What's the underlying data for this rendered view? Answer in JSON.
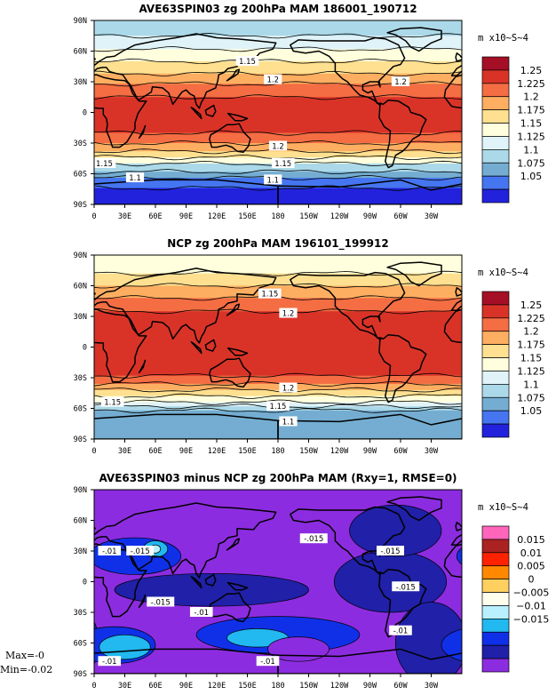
{
  "chart_data": [
    {
      "type": "heatmap",
      "title": "AVE63SPIN03 zg 200hPa MAM 186001_190712",
      "units": "m x10~S~4",
      "x_ticks": [
        "0",
        "30E",
        "60E",
        "90E",
        "120E",
        "150E",
        "180",
        "150W",
        "120W",
        "90W",
        "60W",
        "30W"
      ],
      "y_ticks": [
        "90N",
        "60N",
        "30N",
        "0",
        "30S",
        "60S",
        "90S"
      ],
      "colorbar_levels": [
        "1.25",
        "1.225",
        "1.2",
        "1.175",
        "1.15",
        "1.125",
        "1.1",
        "1.075",
        "1.05"
      ],
      "colorbar_colors": [
        "#a50f26",
        "#d93328",
        "#f46d43",
        "#fdae61",
        "#fee090",
        "#ffffdd",
        "#e0f3f8",
        "#abd9e9",
        "#74add1",
        "#4575f0",
        "#2222dd"
      ],
      "bands": [
        {
          "lat_top": 90,
          "lat_bottom": 75,
          "color": "#abd9e9"
        },
        {
          "lat_top": 75,
          "lat_bottom": 62,
          "color": "#e0f3f8"
        },
        {
          "lat_top": 62,
          "lat_bottom": 50,
          "color": "#ffffdd"
        },
        {
          "lat_top": 50,
          "lat_bottom": 38,
          "color": "#fee090"
        },
        {
          "lat_top": 38,
          "lat_bottom": 28,
          "color": "#fdae61"
        },
        {
          "lat_top": 28,
          "lat_bottom": 15,
          "color": "#f46d43"
        },
        {
          "lat_top": 15,
          "lat_bottom": -20,
          "color": "#d93328"
        },
        {
          "lat_top": -20,
          "lat_bottom": -30,
          "color": "#f46d43"
        },
        {
          "lat_top": -30,
          "lat_bottom": -38,
          "color": "#fdae61"
        },
        {
          "lat_top": -38,
          "lat_bottom": -44,
          "color": "#fee090"
        },
        {
          "lat_top": -44,
          "lat_bottom": -50,
          "color": "#ffffdd"
        },
        {
          "lat_top": -50,
          "lat_bottom": -58,
          "color": "#abd9e9"
        },
        {
          "lat_top": -58,
          "lat_bottom": -64,
          "color": "#74add1"
        },
        {
          "lat_top": -64,
          "lat_bottom": -74,
          "color": "#4575f0"
        },
        {
          "lat_top": -74,
          "lat_bottom": -90,
          "color": "#2222dd"
        }
      ],
      "contour_labels": [
        {
          "text": "1.15",
          "lon": 150,
          "lat": 50
        },
        {
          "text": "1.2",
          "lon": 175,
          "lat": 32
        },
        {
          "text": "1.2",
          "lon": 300,
          "lat": 30
        },
        {
          "text": "1.2",
          "lon": 180,
          "lat": -33
        },
        {
          "text": "1.15",
          "lon": 10,
          "lat": -50
        },
        {
          "text": "1.15",
          "lon": 185,
          "lat": -50
        },
        {
          "text": "1.1",
          "lon": 40,
          "lat": -64
        },
        {
          "text": "1.1",
          "lon": 175,
          "lat": -66
        }
      ]
    },
    {
      "type": "heatmap",
      "title": "NCP zg 200hPa MAM 196101_199912",
      "units": "m x10~S~4",
      "x_ticks": [
        "0",
        "30E",
        "60E",
        "90E",
        "120E",
        "150E",
        "180",
        "150W",
        "120W",
        "90W",
        "60W",
        "30W"
      ],
      "y_ticks": [
        "90N",
        "60N",
        "30N",
        "0",
        "30S",
        "60S",
        "90S"
      ],
      "colorbar_levels": [
        "1.25",
        "1.225",
        "1.2",
        "1.175",
        "1.15",
        "1.125",
        "1.1",
        "1.075",
        "1.05"
      ],
      "colorbar_colors": [
        "#a50f26",
        "#d93328",
        "#f46d43",
        "#fdae61",
        "#fee090",
        "#ffffdd",
        "#e0f3f8",
        "#abd9e9",
        "#74add1",
        "#4575f0",
        "#2222dd"
      ],
      "bands": [
        {
          "lat_top": 90,
          "lat_bottom": 72,
          "color": "#ffffdd"
        },
        {
          "lat_top": 72,
          "lat_bottom": 60,
          "color": "#fee090"
        },
        {
          "lat_top": 60,
          "lat_bottom": 48,
          "color": "#fdae61"
        },
        {
          "lat_top": 48,
          "lat_bottom": 35,
          "color": "#f46d43"
        },
        {
          "lat_top": 35,
          "lat_bottom": -28,
          "color": "#d93328"
        },
        {
          "lat_top": -28,
          "lat_bottom": -36,
          "color": "#f46d43"
        },
        {
          "lat_top": -36,
          "lat_bottom": -42,
          "color": "#fdae61"
        },
        {
          "lat_top": -42,
          "lat_bottom": -48,
          "color": "#fee090"
        },
        {
          "lat_top": -48,
          "lat_bottom": -54,
          "color": "#ffffdd"
        },
        {
          "lat_top": -54,
          "lat_bottom": -58,
          "color": "#e0f3f8"
        },
        {
          "lat_top": -58,
          "lat_bottom": -62,
          "color": "#abd9e9"
        },
        {
          "lat_top": -62,
          "lat_bottom": -90,
          "color": "#74add1"
        }
      ],
      "contour_labels": [
        {
          "text": "1.15",
          "lon": 172,
          "lat": 52
        },
        {
          "text": "1.2",
          "lon": 190,
          "lat": 33
        },
        {
          "text": "1.2",
          "lon": 190,
          "lat": -40
        },
        {
          "text": "1.15",
          "lon": 18,
          "lat": -54
        },
        {
          "text": "1.15",
          "lon": 180,
          "lat": -58
        },
        {
          "text": "1.1",
          "lon": 190,
          "lat": -73
        }
      ]
    },
    {
      "type": "heatmap",
      "title": "AVE63SPIN03 minus NCP zg 200hPa MAM (Rxy=1, RMSE=0)",
      "units": "m x10~S~4",
      "x_ticks": [
        "0",
        "30E",
        "60E",
        "90E",
        "120E",
        "150E",
        "180",
        "150W",
        "120W",
        "90W",
        "60W",
        "30W"
      ],
      "y_ticks": [
        "90N",
        "60N",
        "30N",
        "0",
        "30S",
        "60S",
        "90S"
      ],
      "colorbar_levels": [
        "0.015",
        "0.01",
        "0.005",
        "0",
        "-0.005",
        "-0.01",
        "-0.015"
      ],
      "colorbar_colors": [
        "#ff66bb",
        "#aa2222",
        "#ff2200",
        "#ff8800",
        "#ffd060",
        "#ffffee",
        "#b8f0ff",
        "#22b8f0",
        "#1030e8",
        "#2020a8",
        "#8c2ce0"
      ],
      "base_color": "#8c2ce0",
      "regions": [
        {
          "color": "#2020a8",
          "lon": 115,
          "lat": -8,
          "rx": 95,
          "ry": 16
        },
        {
          "color": "#2020a8",
          "lon": 290,
          "lat": 0,
          "rx": 55,
          "ry": 30
        },
        {
          "color": "#2020a8",
          "lon": 295,
          "lat": 50,
          "rx": 45,
          "ry": 25
        },
        {
          "color": "#2020a8",
          "lon": 330,
          "lat": -60,
          "rx": 35,
          "ry": 40
        },
        {
          "color": "#1030e8",
          "lon": 40,
          "lat": 25,
          "rx": 45,
          "ry": 18
        },
        {
          "color": "#1030e8",
          "lon": 180,
          "lat": -52,
          "rx": 80,
          "ry": 18
        },
        {
          "color": "#1030e8",
          "lon": 20,
          "lat": -62,
          "rx": 40,
          "ry": 18
        },
        {
          "color": "#22b8f0",
          "lon": 30,
          "lat": -64,
          "rx": 25,
          "ry": 12
        },
        {
          "color": "#22b8f0",
          "lon": 160,
          "lat": -55,
          "rx": 30,
          "ry": 9
        },
        {
          "color": "#22b8f0",
          "lon": 60,
          "lat": 32,
          "rx": 12,
          "ry": 8
        },
        {
          "color": "#b8f0ff",
          "lon": 60,
          "lat": 32,
          "rx": 5,
          "ry": 4
        },
        {
          "color": "#8c2ce0",
          "lon": 200,
          "lat": -66,
          "rx": 30,
          "ry": 12
        }
      ],
      "contour_labels": [
        {
          "text": "-.015",
          "lon": 215,
          "lat": 42
        },
        {
          "text": "-.015",
          "lon": 290,
          "lat": 30
        },
        {
          "text": "-.015",
          "lon": 305,
          "lat": -5
        },
        {
          "text": "-.015",
          "lon": 45,
          "lat": 30
        },
        {
          "text": "-.015",
          "lon": 65,
          "lat": -20
        },
        {
          "text": "-.01",
          "lon": 105,
          "lat": -30
        },
        {
          "text": "-.01",
          "lon": 300,
          "lat": -48
        },
        {
          "text": "-.01",
          "lon": 15,
          "lat": -78
        },
        {
          "text": "-.01",
          "lon": 170,
          "lat": -78
        },
        {
          "text": "-.01",
          "lon": 15,
          "lat": 30
        }
      ],
      "max_label": "Max=-0",
      "min_label": "Min=-0.02"
    }
  ]
}
